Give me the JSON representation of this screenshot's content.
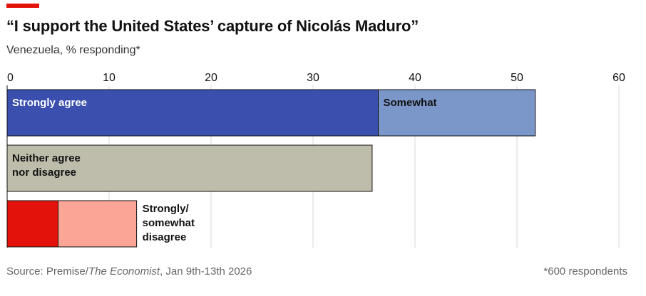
{
  "header": {
    "title": "“I support the United States’ capture of Nicolás Maduro”",
    "subtitle": "Venezuela, % responding*"
  },
  "footer": {
    "source_prefix": "Source: Premise/",
    "source_italic": "The Economist",
    "source_suffix": ", Jan 9th-13th 2026",
    "note": "*600 respondents"
  },
  "colors": {
    "accent": "#e3120b",
    "strongly_agree": "#3a4fae",
    "somewhat_agree": "#7b96c9",
    "neither": "#bebdab",
    "strongly_disagree": "#e3120b",
    "somewhat_disagree": "#fba596"
  },
  "chart_data": {
    "type": "bar",
    "orientation": "horizontal",
    "stacked": true,
    "xlim": [
      0,
      60
    ],
    "xticks": [
      0,
      10,
      20,
      30,
      40,
      50,
      60
    ],
    "grid": true,
    "rows": [
      {
        "label": "",
        "segments": [
          {
            "name": "Strongly agree",
            "value": 36.4,
            "color": "#3a4fae",
            "label_color": "#ffffff",
            "label_inside": true
          },
          {
            "name": "Somewhat",
            "value": 15.4,
            "color": "#7b96c9",
            "label_color": "#121212",
            "label_inside": true
          }
        ]
      },
      {
        "label": "",
        "segments": [
          {
            "name": "Neither agree\nnor disagree",
            "value": 35.8,
            "color": "#bebdab",
            "label_color": "#121212",
            "label_inside": true
          }
        ]
      },
      {
        "label": "",
        "segments": [
          {
            "name": "",
            "value": 5.0,
            "color": "#e3120b",
            "label_inside": false
          },
          {
            "name": "",
            "value": 7.7,
            "color": "#fba596",
            "label_inside": false
          }
        ],
        "outside_label": "Strongly/\nsomewhat\ndisagree"
      }
    ]
  }
}
